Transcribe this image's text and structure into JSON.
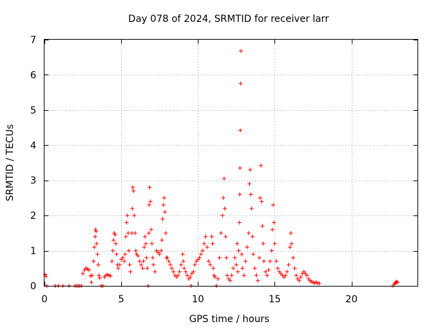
{
  "chart_data": {
    "type": "scatter",
    "title": "Day 078 of 2024, SRMTID for receiver larr",
    "xlabel": "GPS time / hours",
    "ylabel": "SRMTID / TECUs",
    "xlim": [
      0,
      24.3
    ],
    "ylim": [
      0,
      7
    ],
    "xticks": [
      0,
      5,
      10,
      15,
      20
    ],
    "yticks": [
      0,
      1,
      2,
      3,
      4,
      5,
      6,
      7
    ],
    "grid": true,
    "marker": "+",
    "color": "#ff0000",
    "series": [
      {
        "name": "SRMTID",
        "points": [
          [
            0.05,
            0.32
          ],
          [
            0.1,
            0.27
          ],
          [
            0.15,
            0.0
          ],
          [
            0.7,
            0.0
          ],
          [
            0.9,
            0.0
          ],
          [
            1.2,
            0.0
          ],
          [
            1.6,
            0.0
          ],
          [
            2.0,
            0.0
          ],
          [
            2.1,
            0.0
          ],
          [
            2.2,
            0.0
          ],
          [
            2.3,
            0.0
          ],
          [
            2.4,
            0.0
          ],
          [
            2.5,
            0.35
          ],
          [
            2.6,
            0.45
          ],
          [
            2.7,
            0.5
          ],
          [
            2.8,
            0.48
          ],
          [
            2.9,
            0.45
          ],
          [
            3.0,
            0.28
          ],
          [
            3.05,
            0.1
          ],
          [
            3.1,
            0.3
          ],
          [
            3.2,
            0.7
          ],
          [
            3.25,
            1.1
          ],
          [
            3.3,
            1.4
          ],
          [
            3.33,
            1.6
          ],
          [
            3.36,
            1.55
          ],
          [
            3.4,
            1.2
          ],
          [
            3.45,
            0.9
          ],
          [
            3.5,
            0.6
          ],
          [
            3.55,
            0.3
          ],
          [
            3.6,
            0.22
          ],
          [
            3.7,
            0.0
          ],
          [
            3.8,
            0.0
          ],
          [
            3.9,
            0.25
          ],
          [
            4.0,
            0.3
          ],
          [
            4.1,
            0.32
          ],
          [
            4.2,
            0.3
          ],
          [
            4.3,
            0.28
          ],
          [
            4.4,
            0.7
          ],
          [
            4.45,
            1.0
          ],
          [
            4.5,
            1.3
          ],
          [
            4.55,
            1.5
          ],
          [
            4.6,
            1.45
          ],
          [
            4.65,
            1.2
          ],
          [
            4.7,
            0.9
          ],
          [
            4.75,
            0.6
          ],
          [
            4.8,
            0.5
          ],
          [
            4.9,
            0.6
          ],
          [
            5.0,
            0.75
          ],
          [
            5.1,
            0.8
          ],
          [
            5.2,
            0.7
          ],
          [
            5.25,
            0.9
          ],
          [
            5.3,
            1.4
          ],
          [
            5.35,
            1.8
          ],
          [
            5.4,
            2.0
          ],
          [
            5.45,
            1.5
          ],
          [
            5.5,
            1.0
          ],
          [
            5.55,
            0.6
          ],
          [
            5.6,
            0.4
          ],
          [
            5.7,
            1.5
          ],
          [
            5.72,
            2.2
          ],
          [
            5.75,
            2.8
          ],
          [
            5.8,
            2.7
          ],
          [
            5.85,
            2.0
          ],
          [
            5.9,
            1.5
          ],
          [
            5.95,
            1.0
          ],
          [
            6.0,
            0.9
          ],
          [
            6.1,
            0.85
          ],
          [
            6.2,
            0.7
          ],
          [
            6.3,
            0.6
          ],
          [
            6.4,
            0.5
          ],
          [
            6.45,
            0.7
          ],
          [
            6.5,
            1.1
          ],
          [
            6.55,
            1.4
          ],
          [
            6.6,
            1.2
          ],
          [
            6.65,
            0.8
          ],
          [
            6.7,
            0.5
          ],
          [
            6.75,
            0.0
          ],
          [
            6.8,
            1.5
          ],
          [
            6.82,
            2.3
          ],
          [
            6.85,
            2.8
          ],
          [
            6.9,
            2.4
          ],
          [
            6.95,
            1.6
          ],
          [
            7.0,
            1.2
          ],
          [
            7.05,
            0.8
          ],
          [
            7.1,
            0.6
          ],
          [
            7.2,
            0.4
          ],
          [
            7.3,
            1.0
          ],
          [
            7.4,
            0.95
          ],
          [
            7.5,
            0.9
          ],
          [
            7.6,
            1.0
          ],
          [
            7.65,
            1.3
          ],
          [
            7.7,
            1.9
          ],
          [
            7.75,
            2.3
          ],
          [
            7.8,
            2.5
          ],
          [
            7.85,
            2.1
          ],
          [
            7.9,
            1.5
          ],
          [
            7.95,
            0.8
          ],
          [
            8.0,
            0.8
          ],
          [
            8.1,
            0.7
          ],
          [
            8.2,
            0.6
          ],
          [
            8.3,
            0.5
          ],
          [
            8.4,
            0.4
          ],
          [
            8.5,
            0.3
          ],
          [
            8.6,
            0.25
          ],
          [
            8.7,
            0.3
          ],
          [
            8.8,
            0.4
          ],
          [
            8.9,
            0.6
          ],
          [
            9.0,
            0.9
          ],
          [
            9.05,
            0.7
          ],
          [
            9.1,
            0.5
          ],
          [
            9.2,
            0.4
          ],
          [
            9.3,
            0.3
          ],
          [
            9.4,
            0.2
          ],
          [
            9.5,
            0.25
          ],
          [
            9.55,
            0.0
          ],
          [
            9.6,
            0.35
          ],
          [
            9.7,
            0.4
          ],
          [
            9.8,
            0.6
          ],
          [
            9.9,
            0.7
          ],
          [
            10.0,
            0.75
          ],
          [
            10.1,
            0.8
          ],
          [
            10.2,
            0.9
          ],
          [
            10.3,
            1.0
          ],
          [
            10.4,
            1.2
          ],
          [
            10.5,
            1.4
          ],
          [
            10.6,
            1.1
          ],
          [
            10.7,
            0.7
          ],
          [
            10.8,
            0.6
          ],
          [
            10.9,
            1.4
          ],
          [
            10.95,
            1.2
          ],
          [
            11.0,
            0.5
          ],
          [
            11.05,
            0.3
          ],
          [
            11.1,
            0.25
          ],
          [
            11.2,
            0.0
          ],
          [
            11.3,
            0.2
          ],
          [
            11.4,
            0.8
          ],
          [
            11.5,
            1.5
          ],
          [
            11.6,
            2.0
          ],
          [
            11.65,
            2.5
          ],
          [
            11.7,
            3.05
          ],
          [
            11.75,
            2.2
          ],
          [
            11.8,
            1.4
          ],
          [
            11.85,
            0.8
          ],
          [
            11.9,
            0.3
          ],
          [
            12.0,
            0.2
          ],
          [
            12.1,
            0.15
          ],
          [
            12.2,
            0.3
          ],
          [
            12.3,
            0.5
          ],
          [
            12.4,
            0.8
          ],
          [
            12.5,
            0.6
          ],
          [
            12.55,
            1.2
          ],
          [
            12.6,
            0.4
          ],
          [
            12.65,
            1.0
          ],
          [
            12.7,
            1.8
          ],
          [
            12.72,
            2.6
          ],
          [
            12.74,
            3.35
          ],
          [
            12.76,
            4.42
          ],
          [
            12.78,
            5.75
          ],
          [
            12.8,
            6.68
          ],
          [
            12.85,
            0.9
          ],
          [
            12.9,
            0.5
          ],
          [
            13.0,
            0.3
          ],
          [
            13.1,
            0.7
          ],
          [
            13.2,
            1.1
          ],
          [
            13.3,
            1.5
          ],
          [
            13.35,
            2.9
          ],
          [
            13.4,
            3.3
          ],
          [
            13.45,
            2.6
          ],
          [
            13.5,
            2.2
          ],
          [
            13.55,
            1.4
          ],
          [
            13.6,
            0.9
          ],
          [
            13.7,
            0.5
          ],
          [
            13.8,
            0.3
          ],
          [
            13.9,
            0.15
          ],
          [
            14.0,
            0.8
          ],
          [
            14.05,
            2.5
          ],
          [
            14.1,
            3.42
          ],
          [
            14.15,
            2.4
          ],
          [
            14.2,
            1.7
          ],
          [
            14.25,
            1.2
          ],
          [
            14.3,
            0.7
          ],
          [
            14.4,
            0.4
          ],
          [
            14.5,
            0.3
          ],
          [
            14.6,
            0.45
          ],
          [
            14.7,
            0.7
          ],
          [
            14.8,
            1.0
          ],
          [
            14.85,
            1.6
          ],
          [
            14.9,
            2.3
          ],
          [
            14.95,
            1.8
          ],
          [
            15.0,
            1.2
          ],
          [
            15.1,
            0.7
          ],
          [
            15.2,
            0.5
          ],
          [
            15.3,
            0.4
          ],
          [
            15.4,
            0.35
          ],
          [
            15.5,
            0.3
          ],
          [
            15.6,
            0.25
          ],
          [
            15.7,
            0.3
          ],
          [
            15.8,
            0.4
          ],
          [
            15.9,
            0.6
          ],
          [
            16.0,
            1.1
          ],
          [
            16.05,
            1.5
          ],
          [
            16.1,
            1.2
          ],
          [
            16.2,
            0.8
          ],
          [
            16.3,
            0.5
          ],
          [
            16.4,
            0.3
          ],
          [
            16.5,
            0.2
          ],
          [
            16.6,
            0.15
          ],
          [
            16.7,
            0.25
          ],
          [
            16.8,
            0.35
          ],
          [
            16.9,
            0.4
          ],
          [
            17.0,
            0.35
          ],
          [
            17.1,
            0.3
          ],
          [
            17.2,
            0.2
          ],
          [
            17.3,
            0.15
          ],
          [
            17.4,
            0.12
          ],
          [
            17.5,
            0.1
          ],
          [
            17.6,
            0.08
          ],
          [
            17.7,
            0.1
          ],
          [
            17.8,
            0.08
          ],
          [
            17.9,
            0.07
          ],
          [
            22.7,
            0.0
          ],
          [
            22.8,
            0.05
          ],
          [
            22.85,
            0.08
          ],
          [
            22.9,
            0.1
          ],
          [
            22.95,
            0.12
          ],
          [
            23.0,
            0.1
          ]
        ]
      }
    ]
  }
}
